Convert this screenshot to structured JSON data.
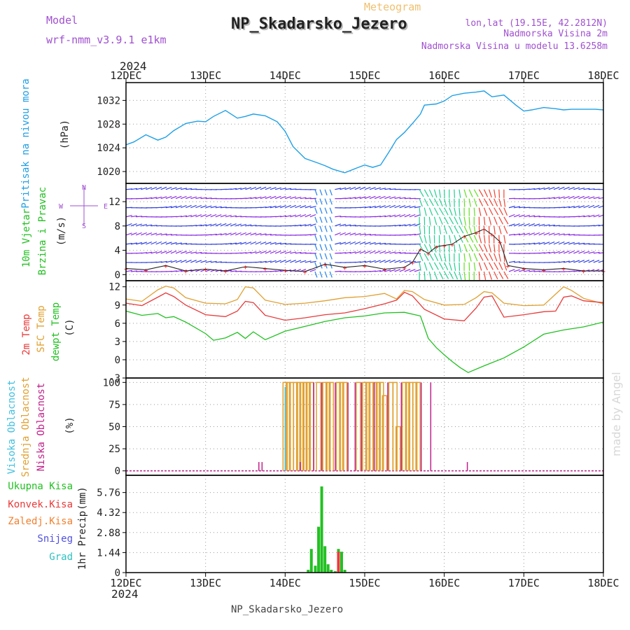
{
  "header": {
    "model_label": "Model",
    "model_name": "wrf-nmm_v3.9.1 e1km",
    "meteogram_label": "Meteogram",
    "station_title": "NP_Skadarsko_Jezero",
    "coords": "lon,lat (19.15E, 42.2812N)",
    "elevation": "Nadmorska Visina 2m",
    "model_elevation": "Nadmorska Visina u modelu 13.6258m",
    "footer_station": "NP_Skadarsko_Jezero",
    "credit": "made by Angel"
  },
  "time_axis": {
    "year_label": "2024",
    "ticks": [
      "12DEC",
      "13DEC",
      "14DEC",
      "15DEC",
      "16DEC",
      "17DEC",
      "18DEC"
    ],
    "range_days": [
      0,
      6
    ]
  },
  "colors": {
    "pressure": "#1ea0e6",
    "wind_speed": "#222222",
    "wind_speed_marker": "#e62020",
    "temp_2m": "#e83a3a",
    "temp_sfc": "#e0a030",
    "dewpoint": "#22c022",
    "cloud_high": "#40c0e0",
    "cloud_mid": "#e0a030",
    "cloud_low": "#c0208a",
    "precip_total": "#22c022",
    "precip_conv": "#e83a3a",
    "precip_frozen": "#f08030",
    "snow": "#5050e0",
    "grad": "#30c0c0",
    "model_text": "#a050d0",
    "meteogram_text": "#f0c070",
    "credit_text": "#d8d8d8"
  },
  "chart_data": [
    {
      "type": "line",
      "panel": "pressure",
      "ylabel": "Pritisak na nivou mora",
      "unit_label": "(hPa)",
      "ylim": [
        1018,
        1035
      ],
      "yticks": [
        1020,
        1024,
        1028,
        1032
      ],
      "grid": true,
      "series": [
        {
          "x": [
            0,
            0.1,
            0.25,
            0.4,
            0.5,
            0.6,
            0.75,
            0.9,
            1.0,
            1.1,
            1.25,
            1.4,
            1.5,
            1.6,
            1.75,
            1.9,
            2.0,
            2.1,
            2.25,
            2.4,
            2.5,
            2.6,
            2.75,
            2.9,
            3.0,
            3.1,
            3.2,
            3.3,
            3.4,
            3.5,
            3.6,
            3.7,
            3.75,
            3.9,
            4.0,
            4.1,
            4.25,
            4.4,
            4.5,
            4.6,
            4.75,
            4.9,
            5.0,
            5.1,
            5.25,
            5.4,
            5.5,
            5.6,
            5.75,
            5.9,
            6.0
          ],
          "values": [
            1024.5,
            1025.0,
            1026.2,
            1025.3,
            1025.8,
            1026.9,
            1028.1,
            1028.5,
            1028.4,
            1029.3,
            1030.3,
            1029.0,
            1029.3,
            1029.7,
            1029.4,
            1028.4,
            1026.8,
            1024.2,
            1022.2,
            1021.5,
            1021.0,
            1020.4,
            1019.8,
            1020.6,
            1021.1,
            1020.7,
            1021.1,
            1023.2,
            1025.4,
            1026.6,
            1028.1,
            1029.7,
            1031.2,
            1031.4,
            1031.9,
            1032.8,
            1033.2,
            1033.4,
            1033.6,
            1032.6,
            1032.9,
            1031.2,
            1030.2,
            1030.4,
            1030.8,
            1030.6,
            1030.4,
            1030.5,
            1030.5,
            1030.5,
            1030.4
          ]
        }
      ]
    },
    {
      "type": "line",
      "panel": "wind",
      "ylabel": "10m Vjetar",
      "ylabel2": "Brzina i Pravac",
      "unit_label": "(m/s)",
      "compass": {
        "n": "N",
        "s": "S",
        "e": "E",
        "w": "W"
      },
      "ylim": [
        -1,
        15
      ],
      "yticks": [
        0,
        4,
        8,
        12
      ],
      "grid": true,
      "series": [
        {
          "name": "speed",
          "x": [
            0,
            0.25,
            0.5,
            0.75,
            1.0,
            1.25,
            1.5,
            1.75,
            2.0,
            2.25,
            2.5,
            2.75,
            3.0,
            3.25,
            3.5,
            3.6,
            3.7,
            3.8,
            3.9,
            4.0,
            4.1,
            4.25,
            4.4,
            4.5,
            4.6,
            4.7,
            4.8,
            5.0,
            5.25,
            5.5,
            5.75,
            6.0
          ],
          "values": [
            1.0,
            0.8,
            1.5,
            0.6,
            0.9,
            0.6,
            1.3,
            1.0,
            0.7,
            0.5,
            1.7,
            1.2,
            1.5,
            0.9,
            1.2,
            2.0,
            4.2,
            3.5,
            4.6,
            4.8,
            5.0,
            6.3,
            6.9,
            7.5,
            6.6,
            5.4,
            1.5,
            1.0,
            0.8,
            1.0,
            0.6,
            0.6
          ]
        }
      ]
    },
    {
      "type": "line",
      "panel": "temperature",
      "ylabel": "2m Temp",
      "ylabel2": "SFC Temp",
      "ylabel3": "dewpt Temp",
      "unit_label": "(C)",
      "ylim": [
        -3,
        13
      ],
      "yticks": [
        -3,
        0,
        3,
        6,
        9,
        12
      ],
      "grid": true,
      "series": [
        {
          "name": "sfc",
          "x": [
            0,
            0.2,
            0.4,
            0.5,
            0.6,
            0.75,
            1.0,
            1.25,
            1.4,
            1.5,
            1.6,
            1.75,
            2.0,
            2.25,
            2.5,
            2.75,
            3.0,
            3.25,
            3.4,
            3.5,
            3.6,
            3.75,
            4.0,
            4.25,
            4.4,
            4.5,
            4.6,
            4.75,
            5.0,
            5.25,
            5.4,
            5.5,
            5.6,
            5.75,
            6.0
          ],
          "values": [
            10.0,
            9.6,
            11.5,
            12.1,
            11.8,
            10.2,
            9.3,
            9.2,
            9.9,
            12.0,
            11.8,
            9.8,
            9.1,
            9.3,
            9.7,
            10.2,
            10.4,
            10.9,
            10.0,
            11.4,
            11.2,
            9.9,
            9.0,
            9.1,
            10.2,
            11.2,
            11.0,
            9.3,
            8.9,
            9.0,
            10.8,
            12.0,
            11.4,
            10.1,
            9.2
          ]
        },
        {
          "name": "2m",
          "x": [
            0,
            0.2,
            0.4,
            0.5,
            0.6,
            0.75,
            1.0,
            1.25,
            1.4,
            1.5,
            1.6,
            1.75,
            2.0,
            2.25,
            2.5,
            2.75,
            3.0,
            3.25,
            3.4,
            3.5,
            3.6,
            3.75,
            4.0,
            4.25,
            4.4,
            4.5,
            4.6,
            4.75,
            5.0,
            5.25,
            5.4,
            5.5,
            5.6,
            5.75,
            6.0
          ],
          "values": [
            9.3,
            8.9,
            10.3,
            11.0,
            10.4,
            9.0,
            7.4,
            7.1,
            8.0,
            9.6,
            9.4,
            7.3,
            6.5,
            6.9,
            7.4,
            7.7,
            8.4,
            9.2,
            9.8,
            11.1,
            10.5,
            8.3,
            6.7,
            6.4,
            8.5,
            10.3,
            10.5,
            7.0,
            7.4,
            7.9,
            8.0,
            10.3,
            10.5,
            9.7,
            9.4
          ]
        },
        {
          "name": "dewpt",
          "x": [
            0,
            0.2,
            0.4,
            0.5,
            0.6,
            0.75,
            1.0,
            1.1,
            1.25,
            1.4,
            1.5,
            1.6,
            1.75,
            2.0,
            2.25,
            2.5,
            2.75,
            3.0,
            3.25,
            3.5,
            3.7,
            3.8,
            3.9,
            4.0,
            4.1,
            4.2,
            4.3,
            4.5,
            4.75,
            5.0,
            5.25,
            5.5,
            5.75,
            6.0
          ],
          "values": [
            8.0,
            7.3,
            7.6,
            6.9,
            7.1,
            6.2,
            4.3,
            3.2,
            3.6,
            4.5,
            3.5,
            4.6,
            3.3,
            4.7,
            5.5,
            6.3,
            6.9,
            7.2,
            7.7,
            7.8,
            7.2,
            3.5,
            2.0,
            0.8,
            -0.3,
            -1.3,
            -2.1,
            -1.0,
            0.3,
            2.1,
            4.2,
            4.9,
            5.4,
            6.2
          ]
        }
      ]
    },
    {
      "type": "bar",
      "panel": "clouds",
      "ylabel": "Visoka Oblacnost",
      "ylabel2": "Srednja Oblacnost",
      "ylabel3": "Niska Oblacnost",
      "unit_label": "(%)",
      "ylim": [
        -5,
        105
      ],
      "yticks": [
        0,
        25,
        50,
        75,
        100
      ],
      "grid": true,
      "series": [
        {
          "name": "mid",
          "x": [
            2.0,
            2.04,
            2.08,
            2.13,
            2.17,
            2.21,
            2.25,
            2.29,
            2.33,
            2.42,
            2.5,
            2.54,
            2.58,
            2.67,
            2.71,
            2.75,
            2.92,
            3.0,
            3.04,
            3.08,
            3.13,
            3.17,
            3.21,
            3.25,
            3.33,
            3.38,
            3.42,
            3.5,
            3.54,
            3.58,
            3.63,
            3.67
          ],
          "values": [
            100,
            100,
            100,
            100,
            100,
            100,
            100,
            100,
            100,
            100,
            100,
            100,
            100,
            100,
            100,
            100,
            100,
            100,
            100,
            100,
            100,
            100,
            100,
            85,
            100,
            100,
            50,
            100,
            100,
            100,
            100,
            100
          ]
        },
        {
          "name": "low",
          "x": [
            1.67,
            1.71,
            2.19,
            2.36,
            2.46,
            2.63,
            2.79,
            2.88,
            2.96,
            3.12,
            3.29,
            3.46,
            3.71,
            3.83,
            4.29
          ],
          "values": [
            10,
            10,
            10,
            100,
            100,
            100,
            100,
            100,
            100,
            100,
            100,
            100,
            100,
            100,
            10
          ]
        },
        {
          "name": "high",
          "x": [
            2.0
          ],
          "values": [
            95
          ]
        }
      ]
    },
    {
      "type": "bar",
      "panel": "precip",
      "ylabel": "1hr Precip",
      "unit_label": "(mm)",
      "legend": [
        "Ukupna Kisa",
        "Konvek.Kisa",
        "Zaledj.Kisa",
        "Snijeg",
        "Grad"
      ],
      "ylim": [
        0,
        7.0
      ],
      "yticks": [
        0,
        1.44,
        2.88,
        4.32,
        5.76
      ],
      "grid": true,
      "series": [
        {
          "name": "total",
          "x": [
            2.29,
            2.33,
            2.38,
            2.42,
            2.46,
            2.5,
            2.54,
            2.58,
            2.63,
            2.67,
            2.71,
            2.75
          ],
          "values": [
            0.2,
            1.7,
            0.5,
            3.3,
            6.2,
            1.9,
            0.6,
            0.2,
            0.1,
            1.7,
            1.5,
            0.2
          ]
        },
        {
          "name": "conv",
          "x": [
            2.67
          ],
          "values": [
            1.5
          ]
        }
      ]
    }
  ]
}
